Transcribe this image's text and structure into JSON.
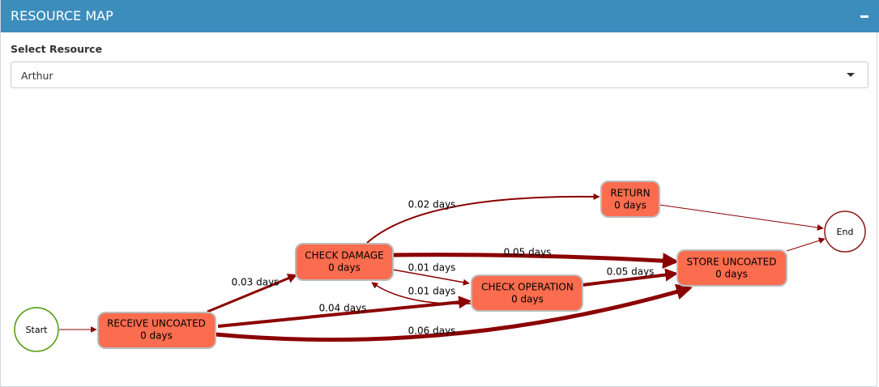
{
  "header": {
    "title": "RESOURCE MAP"
  },
  "select": {
    "label": "Select Resource",
    "value": "Arthur"
  },
  "nodes": [
    {
      "label": "Start"
    },
    {
      "label": "RECEIVE UNCOATED",
      "sublabel": "0 days"
    },
    {
      "label": "CHECK DAMAGE",
      "sublabel": "0 days"
    },
    {
      "label": "RETURN",
      "sublabel": "0 days"
    },
    {
      "label": "CHECK OPERATION",
      "sublabel": "0 days"
    },
    {
      "label": "STORE UNCOATED",
      "sublabel": "0 days"
    },
    {
      "label": "End"
    }
  ],
  "edges": [
    {
      "label": "0.03 days"
    },
    {
      "label": "0.04 days"
    },
    {
      "label": "0.06 days"
    },
    {
      "label": "0.02 days"
    },
    {
      "label": "0.05 days"
    },
    {
      "label": "0.01 days"
    },
    {
      "label": "0.01 days"
    },
    {
      "label": "0.05 days"
    }
  ]
}
